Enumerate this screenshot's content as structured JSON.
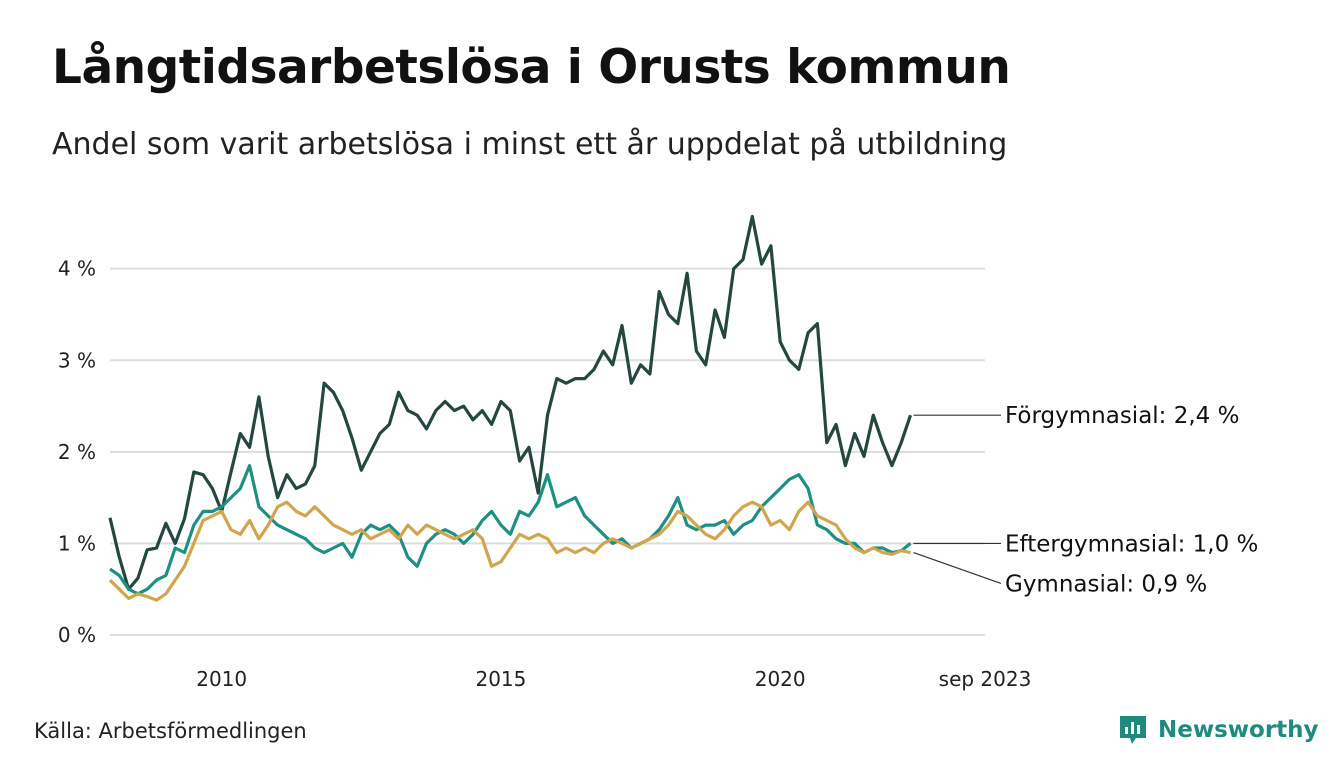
{
  "header": {
    "title": "Långtidsarbetslösa i Orusts kommun",
    "subtitle": "Andel som varit arbetslösa i minst ett år uppdelat på utbildning"
  },
  "footer": {
    "source": "Källa: Arbetsförmedlingen",
    "brand": "Newsworthy",
    "brand_icon": "newsworthy-logo-icon"
  },
  "chart_data": {
    "type": "line",
    "title": "Långtidsarbetslösa i Orusts kommun",
    "subtitle": "Andel som varit arbetslösa i minst ett år uppdelat på utbildning",
    "xlabel": "",
    "ylabel": "",
    "x_start": 2008.0,
    "x_step_years": 0.16667,
    "x_ticks": [
      {
        "value": 2010,
        "label": "2010"
      },
      {
        "value": 2015,
        "label": "2015"
      },
      {
        "value": 2020,
        "label": "2020"
      },
      {
        "value": 2023.667,
        "label": "sep 2023"
      }
    ],
    "y_ticks": [
      {
        "value": 0,
        "label": "0 %"
      },
      {
        "value": 1,
        "label": "1 %"
      },
      {
        "value": 2,
        "label": "2 %"
      },
      {
        "value": 3,
        "label": "3 %"
      },
      {
        "value": 4,
        "label": "4 %"
      }
    ],
    "xlim": [
      2008.0,
      2023.667
    ],
    "ylim": [
      0,
      4.75
    ],
    "grid": true,
    "series": [
      {
        "name": "Förgymnasial",
        "color": "#24473f",
        "end_label": "Förgymnasial: 2,4 %",
        "values": [
          1.28,
          0.85,
          0.5,
          0.62,
          0.93,
          0.95,
          1.22,
          1.0,
          1.27,
          1.78,
          1.75,
          1.6,
          1.35,
          1.78,
          2.2,
          2.05,
          2.6,
          1.95,
          1.5,
          1.75,
          1.6,
          1.65,
          1.85,
          2.75,
          2.65,
          2.45,
          2.15,
          1.8,
          2.0,
          2.2,
          2.3,
          2.65,
          2.45,
          2.4,
          2.25,
          2.45,
          2.55,
          2.45,
          2.5,
          2.35,
          2.45,
          2.3,
          2.55,
          2.45,
          1.9,
          2.05,
          1.55,
          2.4,
          2.8,
          2.75,
          2.8,
          2.8,
          2.9,
          3.1,
          2.95,
          3.38,
          2.75,
          2.95,
          2.85,
          3.75,
          3.5,
          3.4,
          3.95,
          3.1,
          2.95,
          3.55,
          3.25,
          4.0,
          4.1,
          4.57,
          4.05,
          4.25,
          3.2,
          3.0,
          2.9,
          3.3,
          3.4,
          2.1,
          2.3,
          1.85,
          2.2,
          1.95,
          2.4,
          2.1,
          1.85,
          2.1,
          2.4
        ]
      },
      {
        "name": "Eftergymnasial",
        "color": "#1e9082",
        "end_label": "Eftergymnasial: 1,0 %",
        "values": [
          0.72,
          0.65,
          0.5,
          0.45,
          0.5,
          0.6,
          0.65,
          0.95,
          0.9,
          1.2,
          1.35,
          1.35,
          1.4,
          1.5,
          1.6,
          1.85,
          1.4,
          1.3,
          1.2,
          1.15,
          1.1,
          1.05,
          0.95,
          0.9,
          0.95,
          1.0,
          0.85,
          1.1,
          1.2,
          1.15,
          1.2,
          1.1,
          0.85,
          0.75,
          1.0,
          1.1,
          1.15,
          1.1,
          1.0,
          1.1,
          1.25,
          1.35,
          1.2,
          1.1,
          1.35,
          1.3,
          1.45,
          1.75,
          1.4,
          1.45,
          1.5,
          1.3,
          1.2,
          1.1,
          1.0,
          1.05,
          0.95,
          1.0,
          1.05,
          1.15,
          1.3,
          1.5,
          1.2,
          1.15,
          1.2,
          1.2,
          1.25,
          1.1,
          1.2,
          1.25,
          1.4,
          1.5,
          1.6,
          1.7,
          1.75,
          1.6,
          1.2,
          1.15,
          1.05,
          1.0,
          1.0,
          0.9,
          0.95,
          0.95,
          0.9,
          0.92,
          1.0
        ]
      },
      {
        "name": "Gymnasial",
        "color": "#d1a54e",
        "end_label": "Gymnasial: 0,9 %",
        "values": [
          0.6,
          0.5,
          0.4,
          0.45,
          0.42,
          0.38,
          0.45,
          0.6,
          0.75,
          1.0,
          1.25,
          1.3,
          1.35,
          1.15,
          1.1,
          1.25,
          1.05,
          1.2,
          1.4,
          1.45,
          1.35,
          1.3,
          1.4,
          1.3,
          1.2,
          1.15,
          1.1,
          1.15,
          1.05,
          1.1,
          1.15,
          1.05,
          1.2,
          1.1,
          1.2,
          1.15,
          1.1,
          1.05,
          1.1,
          1.15,
          1.05,
          0.75,
          0.8,
          0.95,
          1.1,
          1.05,
          1.1,
          1.05,
          0.9,
          0.95,
          0.9,
          0.95,
          0.9,
          1.0,
          1.05,
          1.0,
          0.95,
          1.0,
          1.05,
          1.1,
          1.2,
          1.35,
          1.3,
          1.2,
          1.1,
          1.05,
          1.15,
          1.3,
          1.4,
          1.45,
          1.4,
          1.2,
          1.25,
          1.15,
          1.35,
          1.45,
          1.3,
          1.25,
          1.2,
          1.05,
          0.95,
          0.9,
          0.95,
          0.9,
          0.88,
          0.92,
          0.9
        ]
      }
    ]
  }
}
